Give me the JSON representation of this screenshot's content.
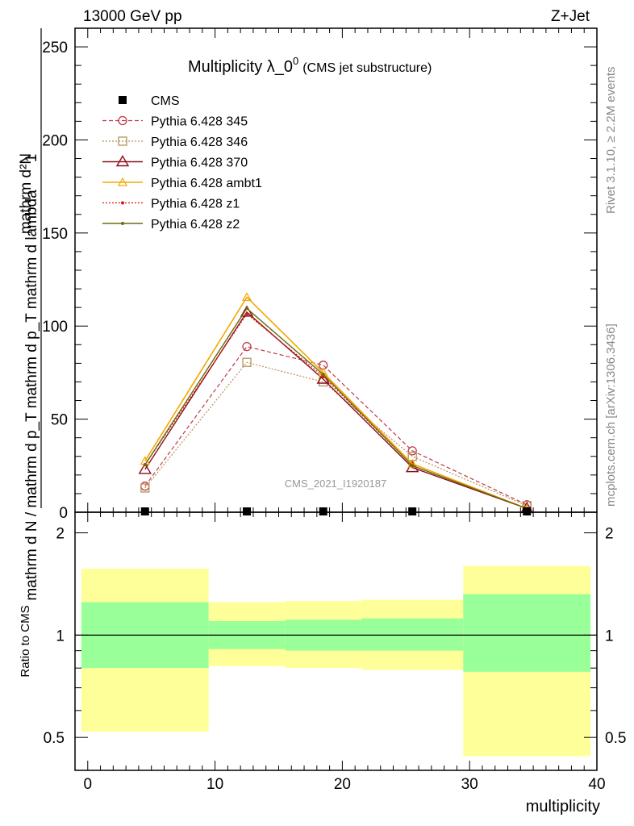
{
  "header": {
    "energy_label": "13000 GeV pp",
    "process_label": "Z+Jet",
    "side_label_rivet": "Rivet 3.1.10, ≥ 2.2M events",
    "side_label_site": "mcplots.cern.ch [arXiv:1306.3436]",
    "analysis_label": "CMS_2021_I1920187"
  },
  "title": {
    "main": "Multiplicity λ_0",
    "superscript": "0",
    "sub": "(CMS jet substructure)"
  },
  "ylabel_main": {
    "numerator": "mathrm d²N",
    "denominator": "mathrm d N / mathrm d p_T mathrm d p_T mathrm d lambda"
  },
  "ylabel_ratio": "Ratio to CMS",
  "xlabel": "multiplicity",
  "main_yticks": [
    "0",
    "50",
    "100",
    "150",
    "200",
    "250"
  ],
  "ratio_yticks": [
    "0.5",
    "1",
    "2"
  ],
  "xticks": [
    "0",
    "10",
    "20",
    "30",
    "40"
  ],
  "colors": {
    "p345": "#c0394b",
    "p346": "#b8915a",
    "p370": "#8b0e1a",
    "ambt1": "#f5a600",
    "z1": "#d41c10",
    "z2": "#6b6b10",
    "band_outer": "#ffff99",
    "band_inner": "#99ff99"
  },
  "chart_data": {
    "type": "line",
    "x": [
      4.5,
      12.5,
      18.5,
      25.5,
      34.5
    ],
    "xlim": [
      -1,
      40
    ],
    "ylim": [
      0,
      260
    ],
    "ratio_ylim": [
      0.4,
      2.3
    ],
    "ratio_yscale": "log",
    "series": [
      {
        "name": "CMS",
        "style": "data",
        "values": [
          0.3,
          0.3,
          0.3,
          0.3,
          0.3
        ]
      },
      {
        "name": "Pythia 6.428 345",
        "style": "345",
        "values": [
          14,
          89,
          79,
          33,
          4
        ]
      },
      {
        "name": "Pythia 6.428 346",
        "style": "346",
        "values": [
          13,
          80.5,
          70,
          30,
          3.5
        ]
      },
      {
        "name": "Pythia 6.428 370",
        "style": "370",
        "values": [
          23,
          107.5,
          71.5,
          24,
          2
        ]
      },
      {
        "name": "Pythia 6.428 ambt1",
        "style": "ambt1",
        "values": [
          27.5,
          115.5,
          75,
          26,
          2
        ]
      },
      {
        "name": "Pythia 6.428 z1",
        "style": "z1",
        "values": [
          25.5,
          106.5,
          73,
          25,
          2
        ]
      },
      {
        "name": "Pythia 6.428 z2",
        "style": "z2",
        "values": [
          25.5,
          109.5,
          74,
          25,
          2
        ]
      }
    ],
    "ratio_bands": [
      {
        "x0": -0.5,
        "x1": 9.5,
        "outer": [
          0.52,
          1.57
        ],
        "inner": [
          0.8,
          1.25
        ]
      },
      {
        "x0": 9.5,
        "x1": 15.5,
        "outer": [
          0.81,
          1.25
        ],
        "inner": [
          0.91,
          1.1
        ]
      },
      {
        "x0": 15.5,
        "x1": 21.5,
        "outer": [
          0.8,
          1.26
        ],
        "inner": [
          0.9,
          1.11
        ]
      },
      {
        "x0": 21.5,
        "x1": 29.5,
        "outer": [
          0.79,
          1.27
        ],
        "inner": [
          0.9,
          1.12
        ]
      },
      {
        "x0": 29.5,
        "x1": 39.5,
        "outer": [
          0.44,
          1.6
        ],
        "inner": [
          0.78,
          1.32
        ]
      }
    ]
  }
}
